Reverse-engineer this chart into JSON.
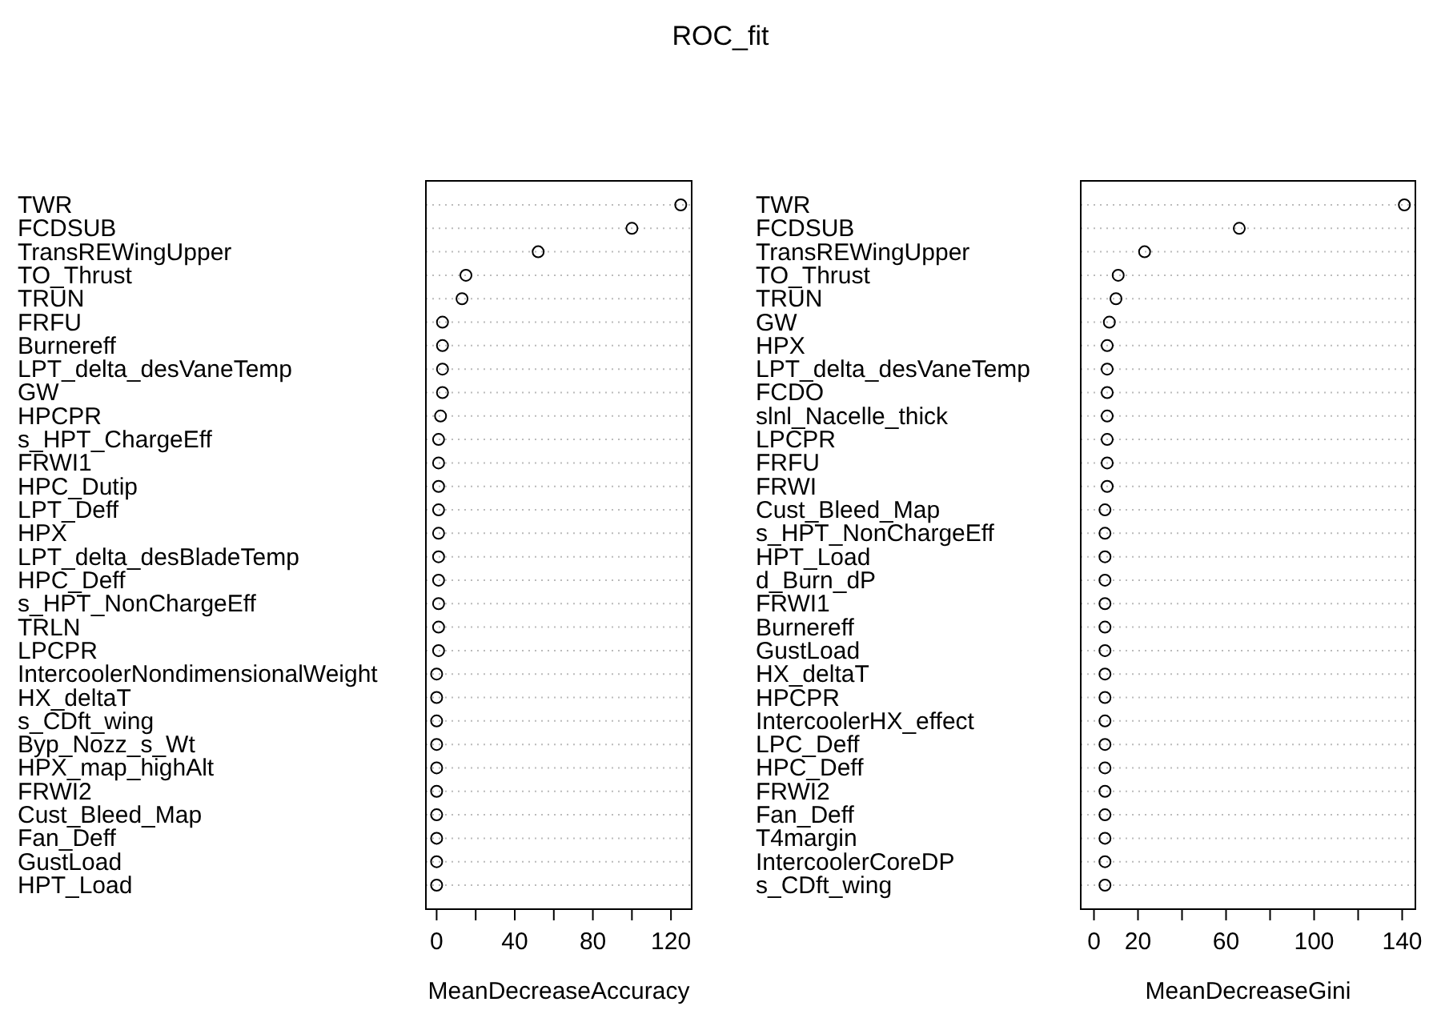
{
  "chart_data": [
    {
      "type": "scatter",
      "title": "ROC_fit",
      "orientation": "horizontal",
      "marker": "circle",
      "grid": "y",
      "color": "#000000",
      "xlabel": "MeanDecreaseAccuracy",
      "categories": [
        "TWR",
        "FCDSUB",
        "TransREWingUpper",
        "TO_Thrust",
        "TRUN",
        "FRFU",
        "Burnereff",
        "LPT_delta_desVaneTemp",
        "GW",
        "HPCPR",
        "s_HPT_ChargeEff",
        "FRWI1",
        "HPC_Dutip",
        "LPT_Deff",
        "HPX",
        "LPT_delta_desBladeTemp",
        "HPC_Deff",
        "s_HPT_NonChargeEff",
        "TRLN",
        "LPCPR",
        "IntercoolerNondimensionalWeight",
        "HX_deltaT",
        "s_CDft_wing",
        "Byp_Nozz_s_Wt",
        "HPX_map_highAlt",
        "FRWI2",
        "Cust_Bleed_Map",
        "Fan_Deff",
        "GustLoad",
        "HPT_Load"
      ],
      "values": [
        125,
        100,
        52,
        15,
        13,
        3,
        3,
        3,
        3,
        2,
        1,
        1,
        1,
        1,
        1,
        1,
        1,
        1,
        1,
        1,
        0,
        0,
        0,
        0,
        0,
        0,
        0,
        0,
        0,
        0
      ],
      "xlim": [
        -5.5,
        130.6
      ],
      "xticks": [
        0,
        {
          "value": 20,
          "label": null
        },
        40,
        {
          "value": 60,
          "label": null
        },
        80,
        {
          "value": 100,
          "label": null
        },
        120
      ]
    },
    {
      "type": "scatter",
      "orientation": "horizontal",
      "marker": "circle",
      "grid": "y",
      "color": "#000000",
      "xlabel": "MeanDecreaseGini",
      "categories": [
        "TWR",
        "FCDSUB",
        "TransREWingUpper",
        "TO_Thrust",
        "TRUN",
        "GW",
        "HPX",
        "LPT_delta_desVaneTemp",
        "FCDO",
        "slnl_Nacelle_thick",
        "LPCPR",
        "FRFU",
        "FRWI",
        "Cust_Bleed_Map",
        "s_HPT_NonChargeEff",
        "HPT_Load",
        "d_Burn_dP",
        "FRWI1",
        "Burnereff",
        "GustLoad",
        "HX_deltaT",
        "HPCPR",
        "IntercoolerHX_effect",
        "LPC_Deff",
        "HPC_Deff",
        "FRWI2",
        "Fan_Deff",
        "T4margin",
        "IntercoolerCoreDP",
        "s_CDft_wing"
      ],
      "values": [
        141,
        66,
        23,
        11,
        10,
        7,
        6,
        6,
        6,
        6,
        6,
        6,
        6,
        5,
        5,
        5,
        5,
        5,
        5,
        5,
        5,
        5,
        5,
        5,
        5,
        5,
        5,
        5,
        5,
        5
      ],
      "xlim": [
        -6,
        146
      ],
      "xticks": [
        0,
        20,
        {
          "value": 40,
          "label": null
        },
        60,
        {
          "value": 80,
          "label": null
        },
        100,
        {
          "value": 120,
          "label": null
        },
        140
      ]
    }
  ]
}
